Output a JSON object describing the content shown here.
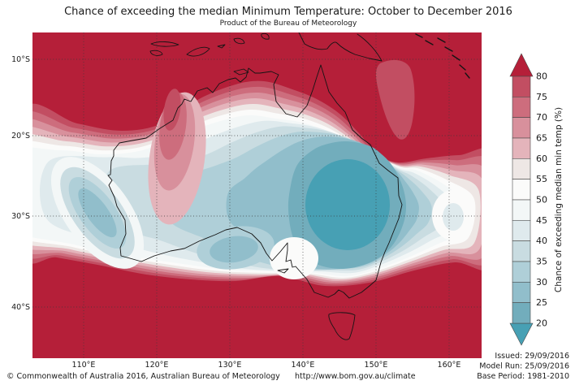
{
  "title": "Chance of exceeding the median Minimum Temperature: October to December 2016",
  "subtitle": "Product of the Bureau of Meteorology",
  "axes": {
    "lat": [
      {
        "label": "10°S"
      },
      {
        "label": "20°S"
      },
      {
        "label": "30°S"
      },
      {
        "label": "40°S"
      }
    ],
    "lon": [
      {
        "label": "110°E"
      },
      {
        "label": "120°E"
      },
      {
        "label": "130°E"
      },
      {
        "label": "140°E"
      },
      {
        "label": "150°E"
      },
      {
        "label": "160°E"
      }
    ]
  },
  "colorbar": {
    "label": "Chance of exceeding median min temp (%)",
    "ticks": [
      "80",
      "75",
      "70",
      "65",
      "60",
      "55",
      "50",
      "45",
      "40",
      "35",
      "30",
      "25",
      "20"
    ],
    "arrow_high_color": "#b51f39",
    "arrow_low_color": "#47a0b4",
    "segments": [
      {
        "range": "75-80",
        "color": "#c24e62"
      },
      {
        "range": "70-75",
        "color": "#cd6d7d"
      },
      {
        "range": "65-70",
        "color": "#d8909c"
      },
      {
        "range": "60-65",
        "color": "#e4b4bb"
      },
      {
        "range": "55-60",
        "color": "#eee7e5"
      },
      {
        "range": "50-55",
        "color": "#fbfbfa"
      },
      {
        "range": "45-50",
        "color": "#f3f7f7"
      },
      {
        "range": "40-45",
        "color": "#dfeaed"
      },
      {
        "range": "35-40",
        "color": "#c9dce1"
      },
      {
        "range": "30-35",
        "color": "#afcfd8"
      },
      {
        "range": "25-30",
        "color": "#91becb"
      },
      {
        "range": "20-25",
        "color": "#72adbc"
      }
    ]
  },
  "map": {
    "background_color": "#b51f39",
    "coastline_color": "#141414",
    "graticule_color": "#3a3a3a"
  },
  "footer": {
    "issued": "Issued: 29/09/2016",
    "model_run": "Model Run: 25/09/2016",
    "base_period": "Base Period: 1981-2010",
    "copyright": "© Commonwealth of Australia 2016, Australian Bureau of Meteorology",
    "url": "http://www.bom.gov.au/climate"
  },
  "chart_data": {
    "type": "heatmap",
    "title": "Chance of exceeding the median Minimum Temperature: October to December 2016",
    "variable": "Chance of exceeding median min temp",
    "units": "%",
    "region": "Australia and surrounding seas",
    "x_ticks": [
      "110°E",
      "120°E",
      "130°E",
      "140°E",
      "150°E",
      "160°E"
    ],
    "y_ticks": [
      "10°S",
      "20°S",
      "30°S",
      "40°S"
    ],
    "levels": [
      20,
      25,
      30,
      35,
      40,
      45,
      50,
      55,
      60,
      65,
      70,
      75,
      80
    ],
    "legend_position": "right",
    "legend_label": "Chance of exceeding median min temp (%)",
    "regions": [
      {
        "area": "Northern Australia (Kimberley, Top End, Cape York) and tropical seas",
        "value_pct": ">80"
      },
      {
        "area": "Southern Ocean, Bass Strait and Tasmania",
        "value_pct": ">80"
      },
      {
        "area": "South-west ocean corner and Coral Sea",
        "value_pct": ">80"
      },
      {
        "area": "Coral Sea finger east of Cape York",
        "value_pct": "75-80"
      },
      {
        "area": "Eastern interior low centre (~143°E, 28°S, inland QLD/NSW)",
        "value_pct": "<20-25"
      },
      {
        "area": "West coast strip near Shark Bay-Geraldton",
        "value_pct": "25-35"
      },
      {
        "area": "Great Australian Bight coast",
        "value_pct": "25-35"
      },
      {
        "area": "Tasman Sea pocket east of NSW (~157°E, 32°S)",
        "value_pct": "40-55"
      },
      {
        "area": "Diagonal transition bands from NW coast wrapping to SE",
        "value_pct": "40-75"
      }
    ],
    "issued": "29/09/2016",
    "model_run": "25/09/2016",
    "base_period": "1981-2010"
  }
}
